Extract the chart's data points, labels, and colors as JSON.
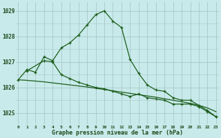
{
  "title": "Graphe pression niveau de la mer (hPa)",
  "bg_color": "#c8eaea",
  "grid_color": "#a8c8c8",
  "line_color": "#1a5c1a",
  "series1": {
    "x": [
      0,
      1,
      2,
      3,
      4,
      5,
      6,
      7,
      8,
      9,
      10,
      11,
      12,
      13,
      14,
      15,
      16,
      17,
      18,
      19,
      20,
      21,
      22,
      23
    ],
    "y": [
      1026.3,
      1026.7,
      1026.6,
      1027.2,
      1027.05,
      1027.55,
      1027.75,
      1028.05,
      1028.45,
      1028.85,
      1029.0,
      1028.6,
      1028.35,
      1027.1,
      1026.55,
      1026.1,
      1025.9,
      1025.85,
      1025.6,
      1025.5,
      1025.5,
      1025.3,
      1025.1,
      1024.85
    ]
  },
  "series2": {
    "x": [
      1,
      3,
      4,
      5,
      6,
      7,
      8,
      9,
      10,
      11,
      12,
      13,
      14,
      15,
      16,
      17,
      18,
      19,
      20,
      21,
      22,
      23
    ],
    "y": [
      1026.65,
      1027.05,
      1027.0,
      1026.5,
      1026.35,
      1026.2,
      1026.1,
      1026.0,
      1025.95,
      1025.85,
      1025.75,
      1025.65,
      1025.75,
      1025.6,
      1025.55,
      1025.5,
      1025.35,
      1025.35,
      1025.35,
      1025.25,
      1025.05,
      1024.85
    ]
  },
  "series3": {
    "x": [
      0,
      1,
      2,
      3,
      4,
      5,
      6,
      7,
      8,
      9,
      10,
      11,
      12,
      13,
      14,
      15,
      16,
      17,
      18,
      19,
      20,
      21,
      22,
      23
    ],
    "y": [
      1026.3,
      1026.28,
      1026.25,
      1026.22,
      1026.18,
      1026.14,
      1026.1,
      1026.06,
      1026.02,
      1025.97,
      1025.92,
      1025.87,
      1025.82,
      1025.77,
      1025.72,
      1025.67,
      1025.62,
      1025.56,
      1025.5,
      1025.44,
      1025.38,
      1025.3,
      1025.2,
      1025.05
    ]
  },
  "xticks": [
    0,
    1,
    2,
    3,
    4,
    5,
    6,
    7,
    8,
    9,
    10,
    11,
    12,
    13,
    14,
    15,
    16,
    17,
    18,
    19,
    20,
    21,
    22,
    23
  ],
  "xtick_labels": [
    "0",
    "1",
    "2",
    "3",
    "4",
    "5",
    "6",
    "7",
    "8",
    "9",
    "10",
    "11",
    "12",
    "13",
    "14",
    "15",
    "16",
    "17",
    "18",
    "19",
    "20",
    "21",
    "22",
    "23"
  ],
  "yticks": [
    1025,
    1026,
    1027,
    1028,
    1029
  ],
  "ylim": [
    1024.55,
    1029.35
  ],
  "xlim": [
    -0.3,
    23.3
  ]
}
